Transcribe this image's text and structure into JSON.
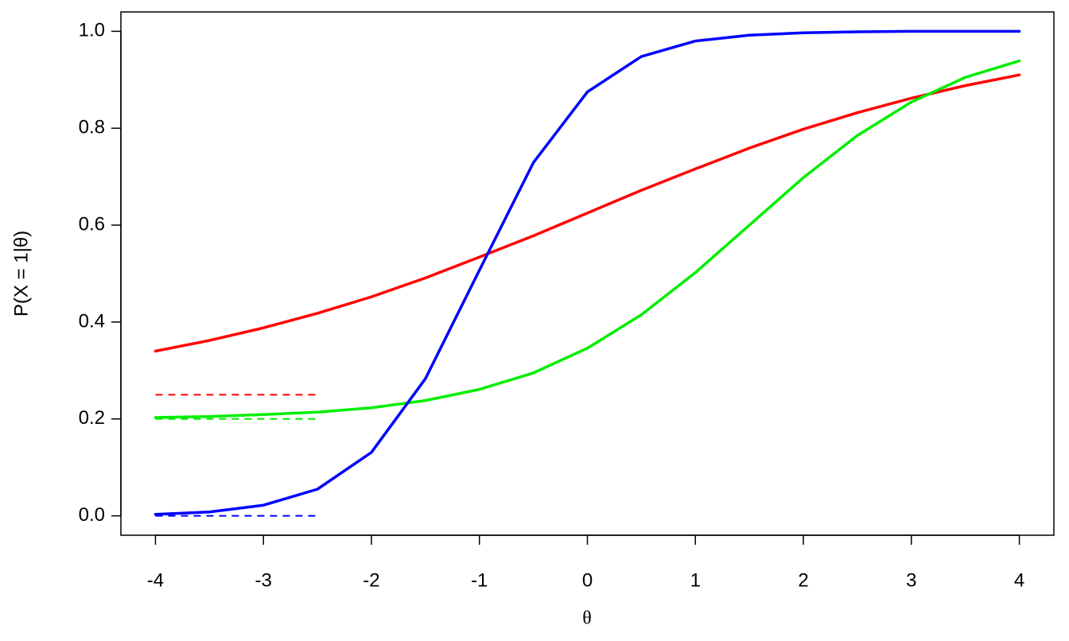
{
  "chart_data": {
    "type": "line",
    "x_label": "θ",
    "y_label": "P(X = 1|θ)",
    "x": [
      -4,
      -3.5,
      -3,
      -2.5,
      -2,
      -1.5,
      -1,
      -0.5,
      0,
      0.5,
      1,
      1.5,
      2,
      2.5,
      3,
      3.5,
      4
    ],
    "series": [
      {
        "color": "#ff0000",
        "values": [
          0.34,
          0.362,
          0.388,
          0.418,
          0.452,
          0.491,
          0.534,
          0.578,
          0.625,
          0.672,
          0.716,
          0.759,
          0.798,
          0.832,
          0.862,
          0.888,
          0.91
        ]
      },
      {
        "color": "#00ee00",
        "values": [
          0.203,
          0.205,
          0.209,
          0.214,
          0.223,
          0.238,
          0.261,
          0.295,
          0.346,
          0.415,
          0.502,
          0.6,
          0.698,
          0.785,
          0.854,
          0.905,
          0.939
        ]
      },
      {
        "color": "#0000ff",
        "values": [
          0.003,
          0.008,
          0.022,
          0.055,
          0.131,
          0.283,
          0.507,
          0.729,
          0.875,
          0.948,
          0.98,
          0.992,
          0.997,
          0.999,
          1.0,
          1.0,
          1.0
        ]
      }
    ],
    "asymptotes": [
      {
        "color": "#ff0000",
        "y": 0.25,
        "x": [
          -4,
          -2.5
        ]
      },
      {
        "color": "#00ee00",
        "y": 0.2,
        "x": [
          -4,
          -2.5
        ]
      },
      {
        "color": "#0000ff",
        "y": 0,
        "x": [
          -4,
          -2.5
        ]
      }
    ],
    "xlim": [
      -4.32,
      4.32
    ],
    "ylim": [
      -0.04,
      1.04
    ],
    "xticks": [
      -4,
      -3,
      -2,
      -1,
      0,
      1,
      2,
      3,
      4
    ],
    "yticks": [
      {
        "value": 0,
        "label": "0.0"
      },
      0.2,
      0.4,
      0.6,
      0.8,
      {
        "value": 1,
        "label": "1.0"
      }
    ]
  }
}
